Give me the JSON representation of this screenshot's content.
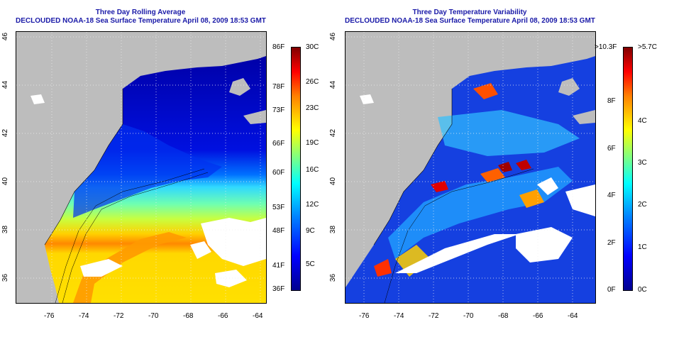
{
  "panels": [
    {
      "title": "Three Day Rolling Average",
      "subtitle": "DECLOUDED NOAA-18 Sea Surface Temperature April 08, 2009 18:53 GMT",
      "x_ticks": [
        "-76",
        "-74",
        "-72",
        "-70",
        "-68",
        "-66",
        "-64"
      ],
      "y_ticks": [
        "36",
        "38",
        "40",
        "42",
        "44",
        "46"
      ],
      "colorbar_left": [
        "86F",
        "78F",
        "73F",
        "66F",
        "60F",
        "53F",
        "48F",
        "41F",
        "36F"
      ],
      "colorbar_right": [
        "30C",
        "26C",
        "23C",
        "19C",
        "16C",
        "12C",
        "9C",
        "5C"
      ]
    },
    {
      "title": "Three Day Temperature Variability",
      "subtitle": "DECLOUDED NOAA-18 Sea Surface Temperature April 08, 2009 18:53 GMT",
      "x_ticks": [
        "-76",
        "-74",
        "-72",
        "-70",
        "-68",
        "-66",
        "-64"
      ],
      "y_ticks": [
        "36",
        "38",
        "40",
        "42",
        "44",
        "46"
      ],
      "colorbar_left": [
        ">10.3F",
        "8F",
        "6F",
        "4F",
        "2F",
        "0F"
      ],
      "colorbar_right": [
        ">5.7C",
        "4C",
        "3C",
        "2C",
        "1C",
        "0C"
      ]
    }
  ],
  "colors": {
    "land": "#bdbdbd",
    "title": "#1a1aa8",
    "colorbar_stops": [
      "#00008f",
      "#0000ff",
      "#0080ff",
      "#00ffff",
      "#80ff80",
      "#ffff00",
      "#ff8000",
      "#ff0000",
      "#800000"
    ]
  }
}
